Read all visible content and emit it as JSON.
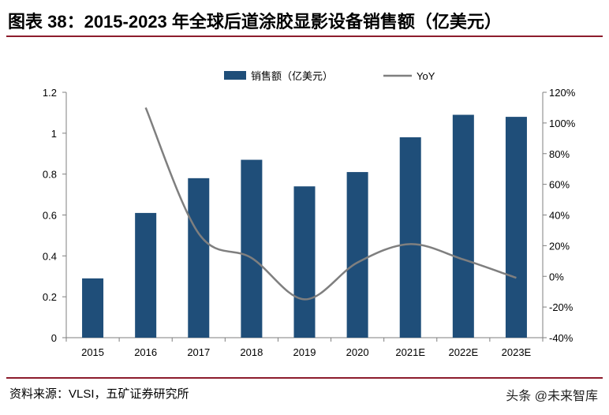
{
  "title": "图表 38：2015-2023 年全球后道涂胶显影设备销售额（亿美元）",
  "source": "资料来源：VLSI，五矿证券研究所",
  "watermark": "头条 @未来智库",
  "colors": {
    "bar": "#1f4e79",
    "line": "#7f7f7f",
    "rule": "#8c1c2c"
  },
  "chart_data": {
    "type": "bar",
    "title": "",
    "xlabel": "",
    "ylabel": "",
    "categories": [
      "2015",
      "2016",
      "2017",
      "2018",
      "2019",
      "2020",
      "2021E",
      "2022E",
      "2023E"
    ],
    "series": [
      {
        "name": "销售额（亿美元）",
        "type": "bar",
        "axis": "left",
        "values": [
          0.29,
          0.61,
          0.78,
          0.87,
          0.74,
          0.81,
          0.98,
          1.09,
          1.08
        ]
      },
      {
        "name": "YoY",
        "type": "line",
        "axis": "right",
        "values": [
          null,
          1.1,
          0.28,
          0.12,
          -0.15,
          0.09,
          0.21,
          0.11,
          -0.01
        ]
      }
    ],
    "ylim": [
      0,
      1.2
    ],
    "yticks": [
      0,
      0.2,
      0.4,
      0.6,
      0.8,
      1,
      1.2
    ],
    "ytick_labels": [
      "0",
      "0.2",
      "0.4",
      "0.6",
      "0.8",
      "1",
      "1.2"
    ],
    "y2lim": [
      -0.4,
      1.2
    ],
    "y2ticks": [
      -0.4,
      -0.2,
      0,
      0.2,
      0.4,
      0.6,
      0.8,
      1.0,
      1.2
    ],
    "y2tick_labels": [
      "-40%",
      "-20%",
      "0%",
      "20%",
      "40%",
      "60%",
      "80%",
      "100%",
      "120%"
    ],
    "legend": "top-center",
    "grid": false
  }
}
